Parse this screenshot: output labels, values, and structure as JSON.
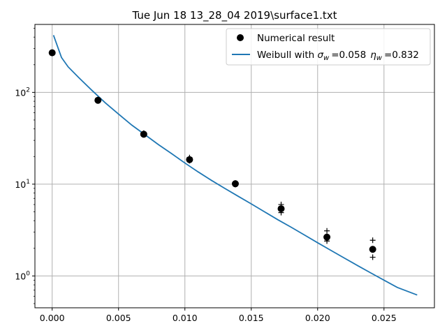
{
  "chart_data": {
    "type": "scatter",
    "title": "Tue Jun 18 13_28_04 2019\\surface1.txt",
    "xlabel": "",
    "ylabel": "",
    "xlim": [
      -0.0013,
      0.0288
    ],
    "ylim": [
      0.45,
      550
    ],
    "yscale": "log",
    "grid": true,
    "legend_position": "top-right",
    "x_ticks": [
      0.0,
      0.005,
      0.01,
      0.015,
      0.02,
      0.025
    ],
    "x_tick_labels": [
      "0.000",
      "0.005",
      "0.010",
      "0.015",
      "0.020",
      "0.025"
    ],
    "y_ticks": [
      1,
      10,
      100
    ],
    "y_tick_labels": [
      {
        "base": "10",
        "exp": "0"
      },
      {
        "base": "10",
        "exp": "1"
      },
      {
        "base": "10",
        "exp": "2"
      }
    ],
    "series": [
      {
        "name": "Numerical result",
        "kind": "points",
        "color": "#000000",
        "x": [
          0.0,
          0.00345,
          0.0069,
          0.01035,
          0.0138,
          0.01725,
          0.0207,
          0.02415
        ],
        "y": [
          270,
          82,
          35,
          18.5,
          10.1,
          5.4,
          2.65,
          1.95
        ],
        "error_marks": [
          {
            "x": 0.0,
            "low": 272,
            "high": 272
          },
          {
            "x": 0.00345,
            "low": 83,
            "high": 84
          },
          {
            "x": 0.0069,
            "low": 35,
            "high": 36
          },
          {
            "x": 0.01035,
            "low": 18,
            "high": 19.5
          },
          {
            "x": 0.0138,
            "low": 9.9,
            "high": 10.3
          },
          {
            "x": 0.01725,
            "low": 4.9,
            "high": 6.0
          },
          {
            "x": 0.0207,
            "low": 2.4,
            "high": 3.1
          },
          {
            "x": 0.02415,
            "low": 1.6,
            "high": 2.45
          }
        ]
      },
      {
        "name_prefix": "Weibull with ",
        "sigma_symbol": "σ",
        "sigma_sub": "w",
        "sigma_value": "=0.058",
        "eta_symbol": "η",
        "eta_sub": "w",
        "eta_value": "=0.832",
        "kind": "line",
        "color": "#1f77b4",
        "x": [
          0.0001,
          0.0007,
          0.0012,
          0.002,
          0.003,
          0.004,
          0.005,
          0.006,
          0.007,
          0.008,
          0.009,
          0.01,
          0.011,
          0.012,
          0.013,
          0.014,
          0.015,
          0.016,
          0.017,
          0.018,
          0.019,
          0.02,
          0.021,
          0.022,
          0.023,
          0.024,
          0.025,
          0.026,
          0.0275
        ],
        "y": [
          420,
          240,
          190,
          145,
          105,
          77,
          58,
          44,
          34.5,
          27,
          21.5,
          17,
          13.6,
          11,
          9,
          7.4,
          6.1,
          5.0,
          4.1,
          3.4,
          2.8,
          2.3,
          1.9,
          1.57,
          1.3,
          1.08,
          0.9,
          0.75,
          0.62
        ]
      }
    ]
  }
}
